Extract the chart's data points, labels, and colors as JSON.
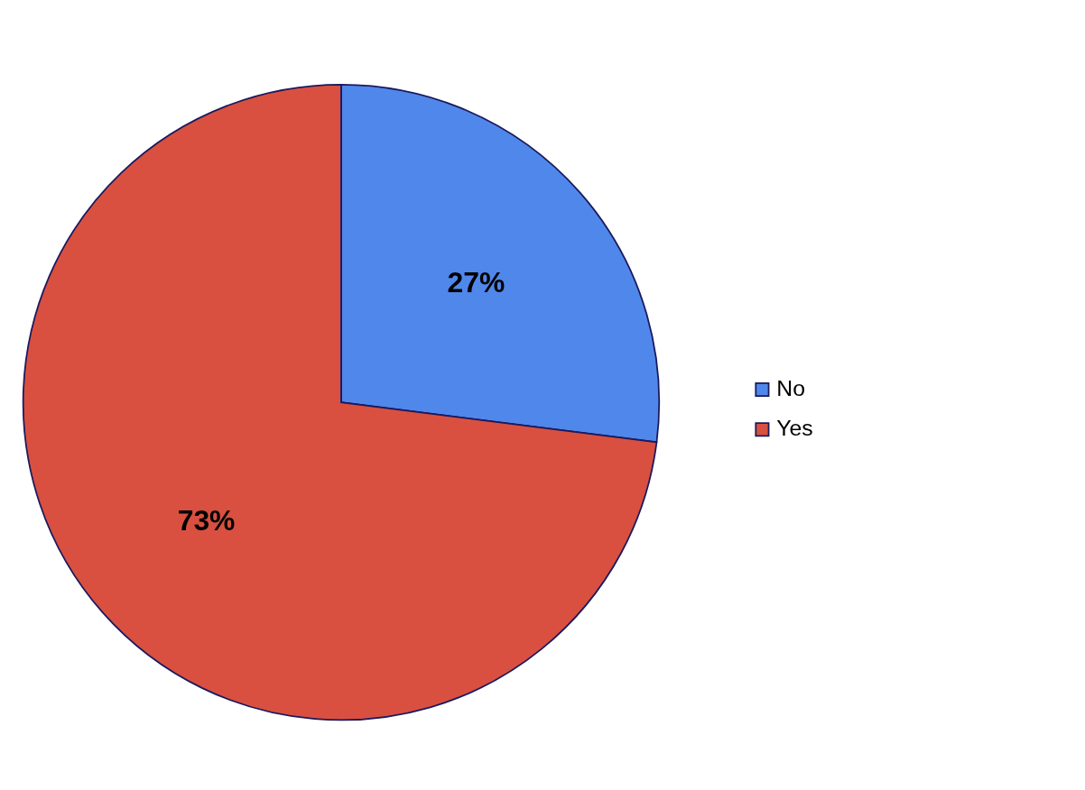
{
  "chart_data": {
    "type": "pie",
    "categories": [
      "No",
      "Yes"
    ],
    "values": [
      27,
      73
    ],
    "colors": [
      "#5087ea",
      "#d95040"
    ],
    "value_labels": [
      "27%",
      "73%"
    ],
    "legend": "right"
  }
}
